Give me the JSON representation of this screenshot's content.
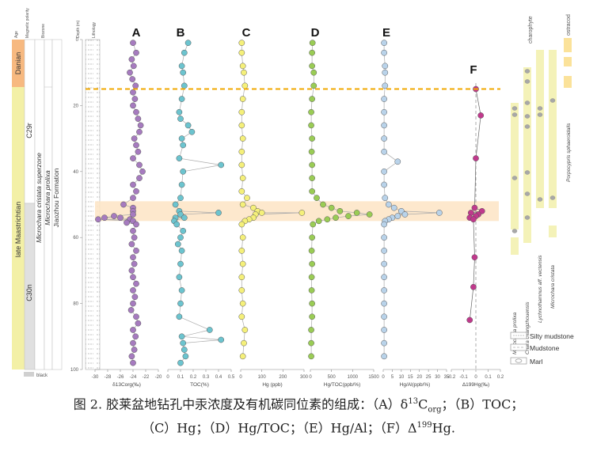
{
  "colors": {
    "purple": "#a67bbf",
    "cyan": "#6cc4cf",
    "yellow": "#f5f07a",
    "green": "#9acc55",
    "blue": "#b9d3ea",
    "magenta": "#c0398c",
    "orange_band": "#fde5c8",
    "dash": "#f0a800",
    "danian": "#f7b980",
    "maastrichtian": "#f3f0a6",
    "grey": "#d9d9d9",
    "pale_yellow": "#f4f2b8"
  },
  "strat_headers": [
    "Age",
    "Magnetic polarity",
    "Biozone"
  ],
  "age_units": [
    "Danian",
    "late Maastrichtian"
  ],
  "polarity_units": [
    "C29r",
    "C30n"
  ],
  "polarity_legend": "black",
  "biozone_labels": [
    "Microchara cristata superzone",
    "Microchara prolixa",
    "Jiaozhou Formation"
  ],
  "depth_title": "Depth (m)",
  "lithology_title": "Lithology",
  "depth_ticks": [
    "0",
    "20",
    "40",
    "60",
    "80",
    "100"
  ],
  "panel_letters": [
    "A",
    "B",
    "C",
    "D",
    "E",
    "F"
  ],
  "panels": [
    {
      "letter": "A",
      "xlabel": "δ13Corg(‰)",
      "ticks": [
        "-30",
        "-28",
        "-26",
        "-24",
        "-22",
        "-20"
      ]
    },
    {
      "letter": "B",
      "xlabel": "TOC(%)",
      "ticks": [
        "0",
        "0.1",
        "0.2",
        "0.3",
        "0.4",
        "0.5"
      ]
    },
    {
      "letter": "C",
      "xlabel": "Hg (ppb)",
      "ticks": [
        "0",
        "100",
        "200",
        "300"
      ]
    },
    {
      "letter": "D",
      "xlabel": "Hg/TOC(ppb/%)",
      "ticks": [
        "0",
        "500",
        "1000",
        "1500"
      ]
    },
    {
      "letter": "E",
      "xlabel": "Hg/Al(ppb/%)",
      "ticks": [
        "0",
        "5",
        "10",
        "15",
        "20",
        "25",
        "30",
        "35"
      ]
    },
    {
      "letter": "F",
      "xlabel": "Δ199Hg(‰)",
      "ticks": [
        "-0.2",
        "-0.1",
        "0",
        "0.1",
        "0.2"
      ]
    }
  ],
  "fossil_names": [
    "Microchara prolixa",
    "Chara changzhouensis",
    "Lychnothamnus aff. vectensis",
    "Microchara cristata",
    "Porpocypris sphaeroidalis"
  ],
  "fossil_groups": [
    "charophyte",
    "ostracod"
  ],
  "legend_items": [
    "Silty mudstone",
    "Mudstone",
    "Marl"
  ],
  "caption": {
    "line1_prefix": "图 2. 胶莱盆地钻孔中汞浓度及有机碳同位素的组成：（A）δ",
    "line1_sup": "13",
    "line1_mid": "C",
    "line1_sub": "org",
    "line1_suffix": "；（B）TOC；",
    "line2_prefix": "（C）Hg；（D）Hg/TOC；（E）Hg/Al；（F）Δ",
    "line2_sup": "199",
    "line2_suffix": "Hg."
  },
  "chart_data": {
    "type": "scatter",
    "y_label": "Depth (m)",
    "ylim": [
      0,
      100
    ],
    "series": [
      {
        "name": "A",
        "xlim": [
          -30,
          -20
        ],
        "points": [
          [
            -24.0,
            1
          ],
          [
            -23.5,
            4
          ],
          [
            -24.2,
            6
          ],
          [
            -23.9,
            8
          ],
          [
            -24.5,
            10
          ],
          [
            -24.1,
            12
          ],
          [
            -23.6,
            14
          ],
          [
            -24.0,
            16
          ],
          [
            -23.7,
            18
          ],
          [
            -24.0,
            20
          ],
          [
            -23.5,
            22
          ],
          [
            -23.2,
            24
          ],
          [
            -22.8,
            26
          ],
          [
            -23.0,
            28
          ],
          [
            -23.8,
            30
          ],
          [
            -23.5,
            32
          ],
          [
            -23.2,
            34
          ],
          [
            -24.0,
            36
          ],
          [
            -23.0,
            38
          ],
          [
            -22.5,
            40
          ],
          [
            -23.0,
            42
          ],
          [
            -24.0,
            44
          ],
          [
            -23.5,
            46
          ],
          [
            -24.0,
            48
          ],
          [
            -25.5,
            50
          ],
          [
            -24.0,
            51
          ],
          [
            -24.0,
            52
          ],
          [
            -24.0,
            53
          ],
          [
            -27.0,
            53.5
          ],
          [
            -28.5,
            54
          ],
          [
            -26.0,
            54
          ],
          [
            -24.5,
            54.5
          ],
          [
            -29.5,
            54.5
          ],
          [
            -24.0,
            55
          ],
          [
            -25.0,
            55.5
          ],
          [
            -23.5,
            56
          ],
          [
            -24.0,
            58
          ],
          [
            -23.8,
            60
          ],
          [
            -24.2,
            62
          ],
          [
            -23.5,
            64
          ],
          [
            -24.0,
            66
          ],
          [
            -23.8,
            68
          ],
          [
            -24.2,
            70
          ],
          [
            -24.0,
            72
          ],
          [
            -23.5,
            74
          ],
          [
            -24.0,
            76
          ],
          [
            -23.7,
            78
          ],
          [
            -24.0,
            80
          ],
          [
            -24.3,
            82
          ],
          [
            -23.5,
            84
          ],
          [
            -23.2,
            86
          ],
          [
            -24.0,
            88
          ],
          [
            -23.6,
            90
          ],
          [
            -24.0,
            92
          ],
          [
            -23.8,
            94
          ],
          [
            -24.2,
            96
          ],
          [
            -24.0,
            98
          ]
        ]
      },
      {
        "name": "B",
        "xlim": [
          0,
          0.5
        ],
        "points": [
          [
            0.16,
            1
          ],
          [
            0.13,
            4
          ],
          [
            0.11,
            8
          ],
          [
            0.12,
            10
          ],
          [
            0.13,
            14
          ],
          [
            0.11,
            18
          ],
          [
            0.09,
            22
          ],
          [
            0.1,
            24
          ],
          [
            0.16,
            26
          ],
          [
            0.19,
            28
          ],
          [
            0.11,
            30
          ],
          [
            0.12,
            32
          ],
          [
            0.09,
            36
          ],
          [
            0.42,
            38
          ],
          [
            0.12,
            40
          ],
          [
            0.11,
            44
          ],
          [
            0.1,
            48
          ],
          [
            0.06,
            50
          ],
          [
            0.09,
            52
          ],
          [
            0.4,
            52.5
          ],
          [
            0.1,
            53
          ],
          [
            0.06,
            54
          ],
          [
            0.13,
            54
          ],
          [
            0.05,
            55
          ],
          [
            0.07,
            56
          ],
          [
            0.12,
            58
          ],
          [
            0.1,
            60
          ],
          [
            0.08,
            62
          ],
          [
            0.11,
            64
          ],
          [
            0.1,
            68
          ],
          [
            0.09,
            72
          ],
          [
            0.11,
            76
          ],
          [
            0.1,
            80
          ],
          [
            0.09,
            84
          ],
          [
            0.33,
            88
          ],
          [
            0.11,
            90
          ],
          [
            0.42,
            91
          ],
          [
            0.12,
            92
          ],
          [
            0.13,
            94
          ],
          [
            0.14,
            96
          ],
          [
            0.1,
            98
          ]
        ]
      },
      {
        "name": "C",
        "xlim": [
          0,
          300
        ],
        "points": [
          [
            5,
            1
          ],
          [
            5,
            4
          ],
          [
            10,
            8
          ],
          [
            15,
            10
          ],
          [
            20,
            14
          ],
          [
            10,
            18
          ],
          [
            5,
            22
          ],
          [
            5,
            26
          ],
          [
            10,
            30
          ],
          [
            5,
            34
          ],
          [
            5,
            38
          ],
          [
            10,
            42
          ],
          [
            5,
            46
          ],
          [
            30,
            48
          ],
          [
            10,
            50
          ],
          [
            60,
            51
          ],
          [
            80,
            52
          ],
          [
            100,
            52.5
          ],
          [
            290,
            52.5
          ],
          [
            70,
            53
          ],
          [
            60,
            54
          ],
          [
            40,
            54.5
          ],
          [
            20,
            55
          ],
          [
            5,
            56
          ],
          [
            10,
            60
          ],
          [
            5,
            64
          ],
          [
            10,
            68
          ],
          [
            5,
            72
          ],
          [
            5,
            76
          ],
          [
            10,
            80
          ],
          [
            5,
            84
          ],
          [
            20,
            88
          ],
          [
            15,
            92
          ],
          [
            10,
            96
          ]
        ]
      },
      {
        "name": "D",
        "xlim": [
          0,
          1500
        ],
        "points": [
          [
            50,
            1
          ],
          [
            40,
            4
          ],
          [
            40,
            8
          ],
          [
            80,
            10
          ],
          [
            80,
            14
          ],
          [
            40,
            18
          ],
          [
            20,
            22
          ],
          [
            20,
            26
          ],
          [
            40,
            30
          ],
          [
            30,
            34
          ],
          [
            40,
            38
          ],
          [
            40,
            42
          ],
          [
            40,
            46
          ],
          [
            150,
            48
          ],
          [
            300,
            50
          ],
          [
            500,
            51
          ],
          [
            700,
            52
          ],
          [
            1100,
            52.5
          ],
          [
            1400,
            53
          ],
          [
            900,
            53.5
          ],
          [
            600,
            54
          ],
          [
            400,
            54.5
          ],
          [
            200,
            55
          ],
          [
            60,
            56
          ],
          [
            40,
            60
          ],
          [
            30,
            64
          ],
          [
            40,
            68
          ],
          [
            30,
            72
          ],
          [
            30,
            76
          ],
          [
            40,
            80
          ],
          [
            40,
            84
          ],
          [
            20,
            88
          ],
          [
            20,
            92
          ],
          [
            20,
            96
          ]
        ]
      },
      {
        "name": "E",
        "xlim": [
          0,
          35
        ],
        "points": [
          [
            0.5,
            1
          ],
          [
            0.5,
            4
          ],
          [
            1,
            8
          ],
          [
            1,
            10
          ],
          [
            1,
            14
          ],
          [
            0.5,
            18
          ],
          [
            0.5,
            22
          ],
          [
            0.5,
            26
          ],
          [
            0.5,
            30
          ],
          [
            0.5,
            34
          ],
          [
            8,
            37
          ],
          [
            0.5,
            40
          ],
          [
            0.5,
            44
          ],
          [
            1,
            48
          ],
          [
            3,
            50
          ],
          [
            6,
            51
          ],
          [
            10,
            52
          ],
          [
            31,
            52.5
          ],
          [
            12,
            53
          ],
          [
            8,
            53.5
          ],
          [
            5,
            54
          ],
          [
            3,
            54.5
          ],
          [
            1,
            55
          ],
          [
            0.5,
            56
          ],
          [
            0.5,
            60
          ],
          [
            0.5,
            64
          ],
          [
            0.5,
            68
          ],
          [
            0.5,
            72
          ],
          [
            0.5,
            76
          ],
          [
            0.5,
            80
          ],
          [
            0.5,
            84
          ],
          [
            0.5,
            88
          ],
          [
            0.5,
            92
          ],
          [
            0.5,
            96
          ]
        ]
      },
      {
        "name": "F",
        "xlim": [
          -0.2,
          0.2
        ],
        "points": [
          [
            0.0,
            15
          ],
          [
            0.04,
            23
          ],
          [
            0.0,
            36
          ],
          [
            -0.01,
            51
          ],
          [
            0.05,
            52
          ],
          [
            -0.04,
            52.5
          ],
          [
            0.02,
            53
          ],
          [
            0.0,
            53.5
          ],
          [
            -0.05,
            54
          ],
          [
            -0.02,
            54.5
          ],
          [
            -0.01,
            66
          ],
          [
            -0.02,
            75
          ],
          [
            -0.05,
            85
          ]
        ]
      }
    ],
    "kpg_boundary_depth": 15,
    "highlight_depth_range": [
      49,
      55
    ]
  }
}
